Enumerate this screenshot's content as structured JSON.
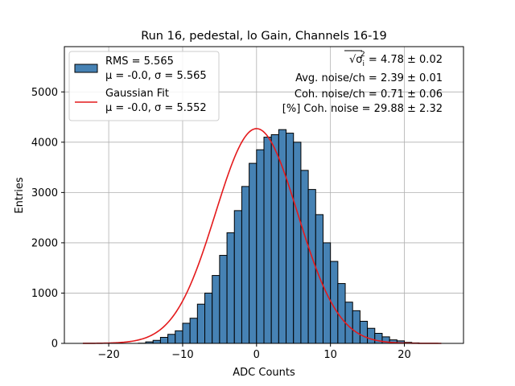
{
  "chart_data": {
    "type": "bar",
    "title": "Run 16, pedestal, lo Gain, Channels 16-19",
    "xlabel": "ADC Counts",
    "ylabel": "Entries",
    "xlim": [
      -26,
      28
    ],
    "ylim": [
      0,
      5900
    ],
    "xticks": [
      -20,
      -10,
      0,
      10,
      20
    ],
    "xtick_labels": [
      "−20",
      "−10",
      "0",
      "10",
      "20"
    ],
    "yticks": [
      0,
      1000,
      2000,
      3000,
      4000,
      5000
    ],
    "ytick_labels": [
      "0",
      "1000",
      "2000",
      "3000",
      "4000",
      "5000"
    ],
    "grid": true,
    "bin_width": 1,
    "bin_start": -24,
    "bar_color": "#4682b4",
    "bar_edge_color": "#000000",
    "hist_values": [
      0,
      0,
      0,
      0,
      0,
      0,
      0,
      0,
      4,
      30,
      60,
      120,
      180,
      250,
      400,
      500,
      780,
      1000,
      1350,
      1750,
      2200,
      2640,
      3120,
      3580,
      3850,
      4100,
      4150,
      4250,
      4180,
      4000,
      3440,
      3060,
      2560,
      2000,
      1630,
      1190,
      820,
      650,
      440,
      300,
      200,
      130,
      70,
      50,
      20,
      10,
      0,
      0,
      0
    ],
    "fit": {
      "name": "Gaussian Fit",
      "mu": 0.0,
      "sigma": 5.552,
      "amplitude": 4270,
      "x_range": [
        -23.5,
        25
      ],
      "color": "#e41a1c"
    },
    "legend": {
      "location": "upper-left",
      "entries": [
        {
          "label_line1": "RMS = 5.565",
          "label_line2": "μ = -0.0, σ = 5.565",
          "kind": "patch"
        },
        {
          "label_line1": "Gaussian Fit",
          "label_line2": "μ = -0.0, σ = 5.552",
          "kind": "line"
        }
      ]
    },
    "annotations": [
      {
        "prefix": "√σ",
        "sub": "i",
        "sup": "2",
        "text": " = 4.78 ± 0.02"
      },
      {
        "text": "Avg. noise/ch = 2.39 ± 0.01"
      },
      {
        "text": "Coh. noise/ch = 0.71 ± 0.06"
      },
      {
        "text": "[%] Coh. noise = 29.88 ± 2.32"
      }
    ]
  }
}
